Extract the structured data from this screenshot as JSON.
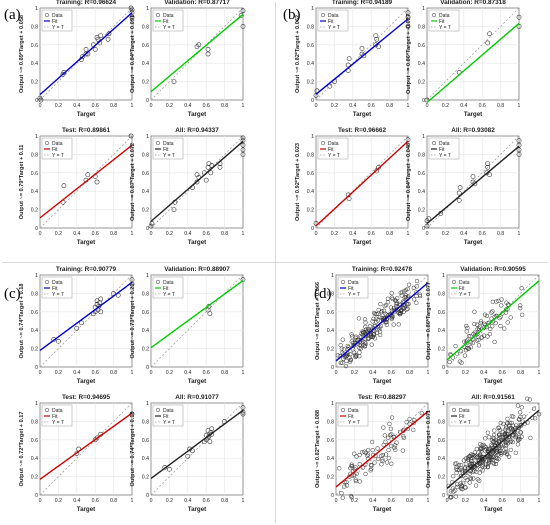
{
  "panels": [
    {
      "label": "(a)",
      "subplots": [
        {
          "title": "Training: R=0.96624",
          "ylabel": "Output ~= 0.89*Target + 0.058",
          "slope": 0.89,
          "intercept": 0.058,
          "fit_color": "#0000cc",
          "points": [
            [
              0,
              0.02
            ],
            [
              0.01,
              0
            ],
            [
              0.25,
              0.28
            ],
            [
              0.26,
              0.3
            ],
            [
              0.45,
              0.44
            ],
            [
              0.46,
              0.47
            ],
            [
              0.5,
              0.5
            ],
            [
              0.5,
              0.55
            ],
            [
              0.52,
              0.5
            ],
            [
              0.58,
              0.6
            ],
            [
              0.6,
              0.55
            ],
            [
              0.62,
              0.68
            ],
            [
              0.63,
              0.66
            ],
            [
              0.65,
              0.62
            ],
            [
              0.66,
              0.7
            ],
            [
              0.74,
              0.66
            ],
            [
              0.75,
              0.72
            ],
            [
              1,
              0.9
            ],
            [
              1,
              0.95
            ],
            [
              1,
              0.98
            ],
            [
              0.99,
              1.0
            ]
          ]
        },
        {
          "title": "Validation: R=0.87717",
          "ylabel": "Output ~= 0.84*Target + 0.091",
          "slope": 0.84,
          "intercept": 0.091,
          "fit_color": "#00cc00",
          "points": [
            [
              0.25,
              0.2
            ],
            [
              0.5,
              0.58
            ],
            [
              0.52,
              0.6
            ],
            [
              0.62,
              0.55
            ],
            [
              0.62,
              0.5
            ],
            [
              1,
              0.8
            ],
            [
              1,
              0.97
            ],
            [
              0.98,
              0.92
            ]
          ]
        },
        {
          "title": "Test: R=0.89861",
          "ylabel": "Output ~= 0.79*Target + 0.11",
          "slope": 0.79,
          "intercept": 0.11,
          "fit_color": "#cc0000",
          "points": [
            [
              0.25,
              0.28
            ],
            [
              0.26,
              0.46
            ],
            [
              0.5,
              0.52
            ],
            [
              0.52,
              0.58
            ],
            [
              0.6,
              0.56
            ],
            [
              0.62,
              0.5
            ],
            [
              0.99,
              1.0
            ]
          ]
        },
        {
          "title": "All: R=0.94337",
          "ylabel": "Output ~= 0.87*Target + 0.072",
          "slope": 0.87,
          "intercept": 0.072,
          "fit_color": "#222222",
          "points": [
            [
              0,
              0.02
            ],
            [
              0.01,
              0.05
            ],
            [
              0.25,
              0.2
            ],
            [
              0.26,
              0.28
            ],
            [
              0.45,
              0.44
            ],
            [
              0.5,
              0.5
            ],
            [
              0.5,
              0.58
            ],
            [
              0.52,
              0.55
            ],
            [
              0.58,
              0.6
            ],
            [
              0.6,
              0.52
            ],
            [
              0.62,
              0.66
            ],
            [
              0.63,
              0.7
            ],
            [
              0.65,
              0.6
            ],
            [
              0.66,
              0.68
            ],
            [
              0.75,
              0.7
            ],
            [
              0.75,
              0.66
            ],
            [
              1,
              0.9
            ],
            [
              1,
              0.85
            ],
            [
              1,
              0.95
            ],
            [
              1,
              0.8
            ],
            [
              1,
              0.98
            ]
          ]
        }
      ]
    },
    {
      "label": "(b)",
      "subplots": [
        {
          "title": "Training: R=0.94189",
          "ylabel": "Output ~= 0.82*Target + 0.062",
          "slope": 0.82,
          "intercept": 0.062,
          "fit_color": "#0000cc",
          "points": [
            [
              0,
              0.05
            ],
            [
              0.01,
              0.1
            ],
            [
              0.15,
              0.15
            ],
            [
              0.2,
              0.2
            ],
            [
              0.35,
              0.32
            ],
            [
              0.35,
              0.38
            ],
            [
              0.36,
              0.45
            ],
            [
              0.5,
              0.5
            ],
            [
              0.5,
              0.56
            ],
            [
              0.52,
              0.48
            ],
            [
              0.65,
              0.6
            ],
            [
              0.66,
              0.66
            ],
            [
              0.65,
              0.7
            ],
            [
              0.68,
              0.58
            ],
            [
              1,
              0.8
            ],
            [
              1,
              0.9
            ],
            [
              1,
              0.95
            ]
          ]
        },
        {
          "title": "Validation: R=0.87318",
          "ylabel": "Output ~= 0.86*Target + -0.027",
          "slope": 0.86,
          "intercept": -0.027,
          "fit_color": "#00cc00",
          "points": [
            [
              0,
              0
            ],
            [
              0.35,
              0.3
            ],
            [
              0.66,
              0.62
            ],
            [
              0.68,
              0.72
            ],
            [
              1,
              0.8
            ],
            [
              1,
              0.9
            ]
          ]
        },
        {
          "title": "Test: R=0.96662",
          "ylabel": "Output ~= 0.92*Target + 0.023",
          "slope": 0.92,
          "intercept": 0.023,
          "fit_color": "#cc0000",
          "points": [
            [
              0,
              0.05
            ],
            [
              0.35,
              0.36
            ],
            [
              0.36,
              0.32
            ],
            [
              0.66,
              0.62
            ],
            [
              0.68,
              0.66
            ],
            [
              1,
              0.96
            ]
          ]
        },
        {
          "title": "All: R=0.93082",
          "ylabel": "Output ~= 0.84*Target + 0.048",
          "slope": 0.84,
          "intercept": 0.048,
          "fit_color": "#222222",
          "points": [
            [
              0,
              0.02
            ],
            [
              0,
              0.08
            ],
            [
              0.02,
              0.1
            ],
            [
              0.15,
              0.16
            ],
            [
              0.35,
              0.3
            ],
            [
              0.35,
              0.38
            ],
            [
              0.36,
              0.44
            ],
            [
              0.5,
              0.5
            ],
            [
              0.5,
              0.56
            ],
            [
              0.52,
              0.48
            ],
            [
              0.65,
              0.6
            ],
            [
              0.66,
              0.66
            ],
            [
              0.66,
              0.7
            ],
            [
              0.68,
              0.58
            ],
            [
              1,
              0.8
            ],
            [
              1,
              0.85
            ],
            [
              1,
              0.9
            ],
            [
              1,
              0.95
            ]
          ]
        }
      ]
    },
    {
      "label": "(c)",
      "subplots": [
        {
          "title": "Training: R=0.90779",
          "ylabel": "Output ~= 0.74*Target + 0.18",
          "slope": 0.74,
          "intercept": 0.18,
          "fit_color": "#0000cc",
          "points": [
            [
              0.15,
              0.3
            ],
            [
              0.2,
              0.28
            ],
            [
              0.4,
              0.42
            ],
            [
              0.45,
              0.48
            ],
            [
              0.58,
              0.58
            ],
            [
              0.6,
              0.6
            ],
            [
              0.6,
              0.65
            ],
            [
              0.62,
              0.68
            ],
            [
              0.62,
              0.72
            ],
            [
              0.63,
              0.62
            ],
            [
              0.64,
              0.66
            ],
            [
              0.65,
              0.7
            ],
            [
              0.66,
              0.74
            ],
            [
              0.66,
              0.6
            ],
            [
              0.8,
              0.8
            ],
            [
              0.85,
              0.78
            ],
            [
              1,
              0.9
            ],
            [
              1,
              0.95
            ]
          ]
        },
        {
          "title": "Validation: R=0.88907",
          "ylabel": "Output ~= 0.73*Target + 0.21",
          "slope": 0.73,
          "intercept": 0.21,
          "fit_color": "#00cc00",
          "points": [
            [
              0.62,
              0.62
            ],
            [
              0.63,
              0.66
            ],
            [
              0.64,
              0.58
            ],
            [
              1,
              0.95
            ]
          ]
        },
        {
          "title": "Test: R=0.94695",
          "ylabel": "Output ~= 0.72*Target + 0.17",
          "slope": 0.72,
          "intercept": 0.17,
          "fit_color": "#cc0000",
          "points": [
            [
              0.4,
              0.45
            ],
            [
              0.42,
              0.5
            ],
            [
              0.6,
              0.6
            ],
            [
              0.62,
              0.62
            ],
            [
              0.66,
              0.66
            ],
            [
              1,
              0.88
            ]
          ]
        },
        {
          "title": "All: R=0.91077",
          "ylabel": "Output ~= 0.74*Target + 0.18",
          "slope": 0.74,
          "intercept": 0.18,
          "fit_color": "#222222",
          "points": [
            [
              0.15,
              0.3
            ],
            [
              0.2,
              0.28
            ],
            [
              0.4,
              0.42
            ],
            [
              0.42,
              0.5
            ],
            [
              0.45,
              0.48
            ],
            [
              0.58,
              0.58
            ],
            [
              0.6,
              0.6
            ],
            [
              0.6,
              0.65
            ],
            [
              0.62,
              0.62
            ],
            [
              0.62,
              0.7
            ],
            [
              0.63,
              0.64
            ],
            [
              0.64,
              0.58
            ],
            [
              0.65,
              0.68
            ],
            [
              0.66,
              0.72
            ],
            [
              0.66,
              0.66
            ],
            [
              0.8,
              0.8
            ],
            [
              1,
              0.9
            ],
            [
              1,
              0.95
            ],
            [
              1,
              0.88
            ]
          ]
        }
      ]
    },
    {
      "label": "(d)",
      "subplots": [
        {
          "title": "Training: R=0.92478",
          "ylabel": "Output ~= 0.85*Target + 0.066",
          "slope": 0.85,
          "intercept": 0.066,
          "fit_color": "#0000cc",
          "n": 220,
          "noise": 0.11,
          "seed": 11,
          "points": []
        },
        {
          "title": "Validation: R=0.90595",
          "ylabel": "Output ~= 0.86*Target + 0.077",
          "slope": 0.86,
          "intercept": 0.077,
          "fit_color": "#00cc00",
          "n": 90,
          "noise": 0.12,
          "seed": 23,
          "points": []
        },
        {
          "title": "Test: R=0.88297",
          "ylabel": "Output ~= 0.82*Target + 0.088",
          "slope": 0.82,
          "intercept": 0.088,
          "fit_color": "#cc0000",
          "n": 90,
          "noise": 0.14,
          "seed": 37,
          "points": []
        },
        {
          "title": "All: R=0.91561",
          "ylabel": "Output ~= 0.85*Target + 0.071",
          "slope": 0.85,
          "intercept": 0.071,
          "fit_color": "#222222",
          "n": 320,
          "noise": 0.12,
          "seed": 51,
          "points": []
        }
      ]
    }
  ],
  "xlabel": "Target",
  "legend": [
    "Data",
    "Fit",
    "Y = T"
  ],
  "ticks": [
    "0",
    "0.2",
    "0.4",
    "0.6",
    "0.8",
    "1"
  ],
  "colors": {
    "fit_train": "#0000cc",
    "fit_val": "#00cc00",
    "fit_test": "#cc0000",
    "fit_all": "#222222",
    "ideal": "#a0a0a0",
    "marker": "#333333"
  },
  "chart_data": {
    "type": "scatter",
    "xlabel": "Target",
    "xlim": [
      0,
      1
    ],
    "ylim": [
      0,
      1
    ],
    "grid": true,
    "legend_position": "top-left",
    "series": [
      {
        "name": "Data"
      },
      {
        "name": "Fit"
      },
      {
        "name": "Y = T"
      }
    ],
    "panels_source": "panels"
  }
}
